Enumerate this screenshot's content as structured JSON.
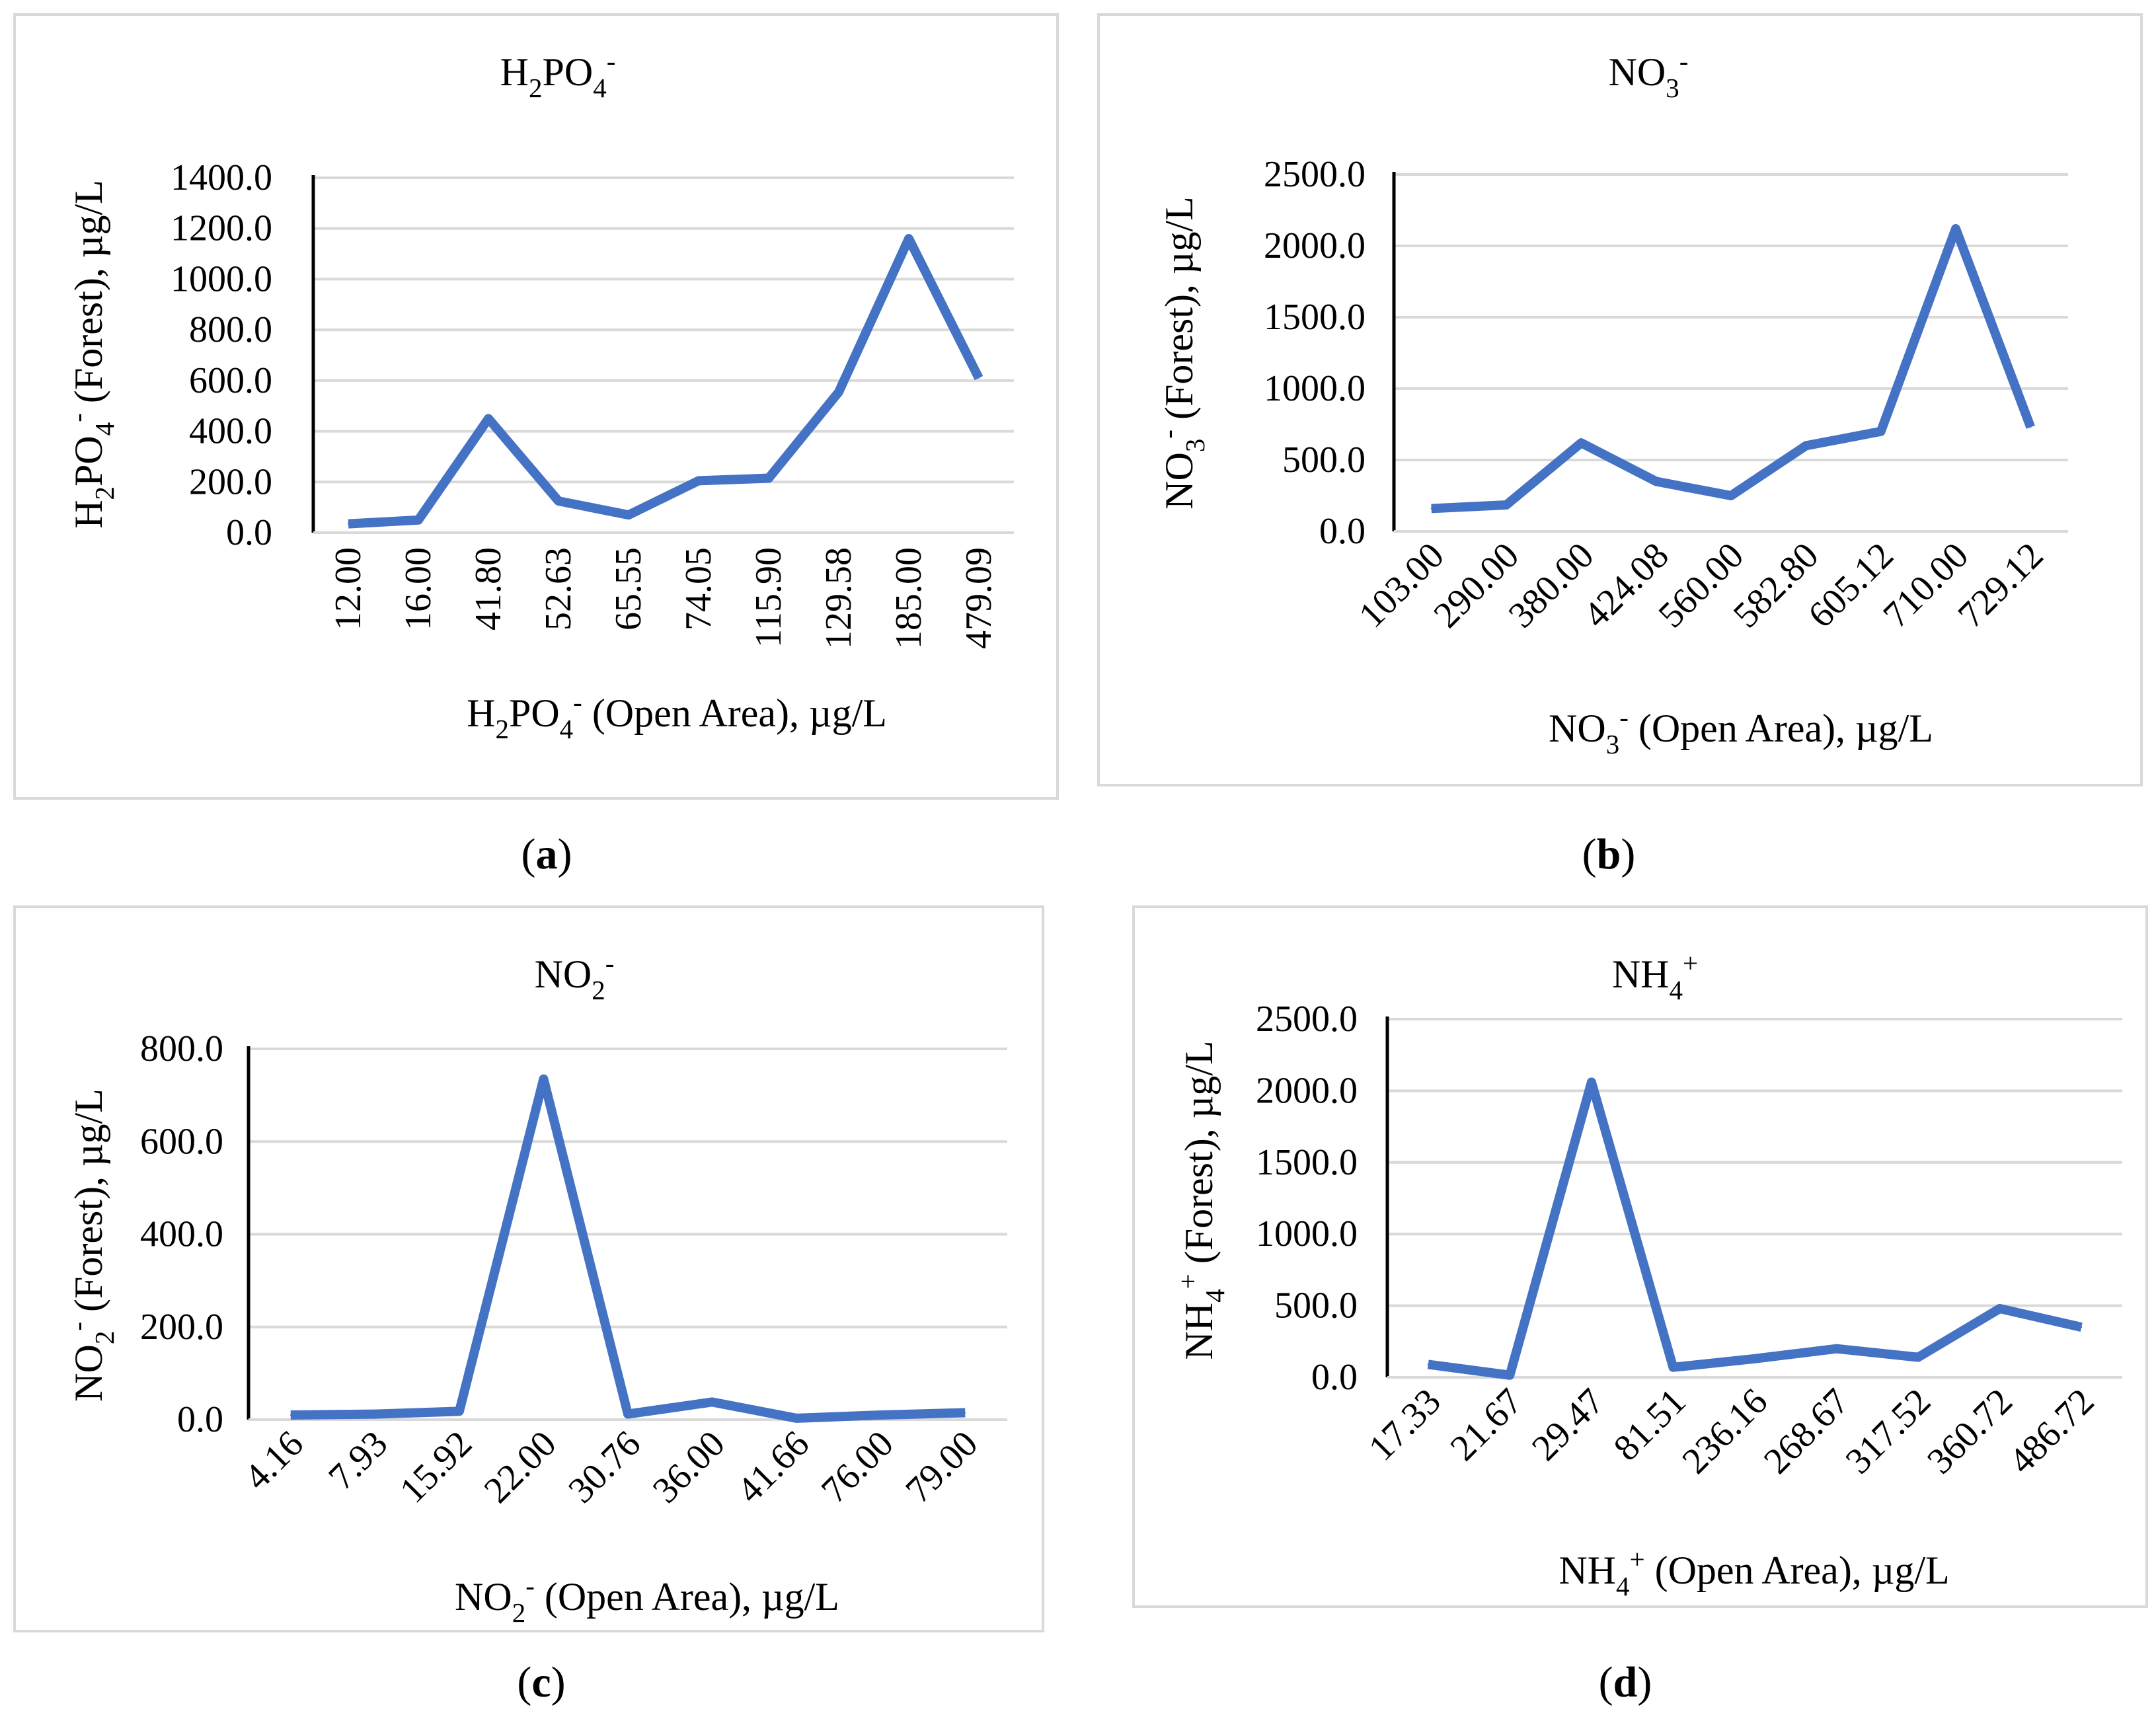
{
  "colors": {
    "line": "#4472c4",
    "grid": "#d9d9d9",
    "axis": "#000000",
    "border": "#d9d9d9"
  },
  "chart_data": [
    {
      "id": "a",
      "type": "line",
      "caption": "a",
      "title": {
        "base": "H",
        "sub1": "2",
        "mid": "PO",
        "sub2": "4",
        "sup": "-"
      },
      "ylabel": {
        "base": "H",
        "sub1": "2",
        "mid": "PO",
        "sub2": "4",
        "sup": "-",
        "rest": " (Forest), µg/L"
      },
      "xlabel": {
        "base": "H",
        "sub1": "2",
        "mid": "PO",
        "sub2": "4",
        "sup": "-",
        "rest": " (Open Area), µg/L"
      },
      "categories": [
        "12.00",
        "16.00",
        "41.80",
        "52.63",
        "65.55",
        "74.05",
        "115.90",
        "129.58",
        "185.00",
        "479.09"
      ],
      "values": [
        35,
        50,
        450,
        125,
        70,
        205,
        215,
        555,
        1160,
        610
      ],
      "ylim": [
        0,
        1400
      ],
      "yticks": [
        "0.0",
        "200.0",
        "400.0",
        "600.0",
        "800.0",
        "1000.0",
        "1200.0",
        "1400.0"
      ],
      "grid": true,
      "tick_rotation": -90
    },
    {
      "id": "b",
      "type": "line",
      "caption": "b",
      "title": {
        "base": "NO",
        "sub1": "3",
        "mid": "",
        "sub2": "",
        "sup": "-"
      },
      "ylabel": {
        "base": "NO",
        "sub1": "3",
        "mid": "",
        "sub2": "",
        "sup": "-",
        "rest": "  (Forest), µg/L"
      },
      "xlabel": {
        "base": "NO",
        "sub1": "3",
        "mid": "",
        "sub2": "",
        "sup": "-",
        "rest": " (Open Area), µg/L"
      },
      "categories": [
        "103.00",
        "290.00",
        "380.00",
        "424.08",
        "560.00",
        "582.80",
        "605.12",
        "710.00",
        "729.12"
      ],
      "values": [
        160,
        185,
        620,
        350,
        250,
        600,
        700,
        2120,
        730
      ],
      "ylim": [
        0,
        2500
      ],
      "yticks": [
        "0.0",
        "500.0",
        "1000.0",
        "1500.0",
        "2000.0",
        "2500.0"
      ],
      "grid": true,
      "tick_rotation": -45
    },
    {
      "id": "c",
      "type": "line",
      "caption": "c",
      "title": {
        "base": "NO",
        "sub1": "2",
        "mid": "",
        "sub2": "",
        "sup": "-"
      },
      "ylabel": {
        "base": "NO",
        "sub1": "2",
        "mid": "",
        "sub2": "",
        "sup": "-",
        "rest": " (Forest), µg/L"
      },
      "xlabel": {
        "base": "NO",
        "sub1": "2",
        "mid": "",
        "sub2": "",
        "sup": "-",
        "rest": " (Open Area), µg/L"
      },
      "categories": [
        "4.16",
        "7.93",
        "15.92",
        "22.00",
        "30.76",
        "36.00",
        "41.66",
        "76.00",
        "79.00"
      ],
      "values": [
        10,
        12,
        18,
        735,
        12,
        38,
        3,
        10,
        15
      ],
      "ylim": [
        0,
        800
      ],
      "yticks": [
        "0.0",
        "200.0",
        "400.0",
        "600.0",
        "800.0"
      ],
      "grid": true,
      "tick_rotation": -45
    },
    {
      "id": "d",
      "type": "line",
      "caption": "d",
      "title": {
        "base": "NH",
        "sub1": "4",
        "mid": "",
        "sub2": "",
        "sup": "+"
      },
      "ylabel": {
        "base": "NH",
        "sub1": "4",
        "mid": "",
        "sub2": "",
        "sup": "+",
        "rest": " (Forest), µg/L"
      },
      "xlabel": {
        "base": "NH",
        "sub1": "4",
        "mid": "",
        "sub2": "",
        "sup": "+",
        "rest": " (Open Area), µg/L"
      },
      "categories": [
        "17.33",
        "21.67",
        "29.47",
        "81.51",
        "236.16",
        "268.67",
        "317.52",
        "360.72",
        "486.72"
      ],
      "values": [
        90,
        15,
        2060,
        70,
        130,
        200,
        140,
        480,
        350
      ],
      "ylim": [
        0,
        2500
      ],
      "yticks": [
        "0.0",
        "500.0",
        "1000.0",
        "1500.0",
        "2000.0",
        "2500.0"
      ],
      "grid": true,
      "tick_rotation": -45
    }
  ]
}
